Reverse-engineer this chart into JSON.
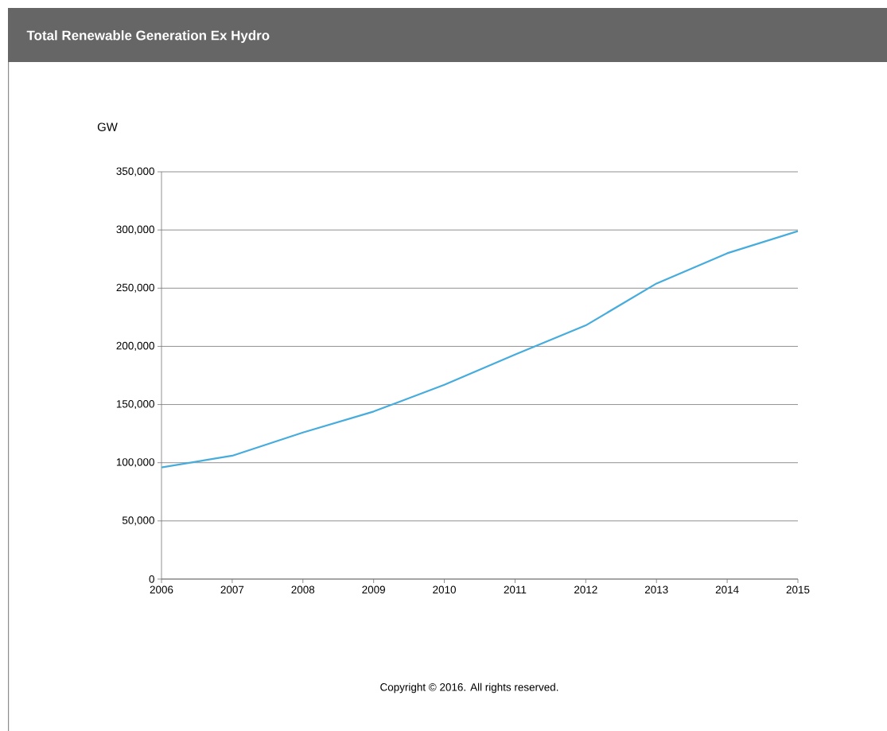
{
  "chart_data": {
    "type": "line",
    "title": "Total Renewable Generation Ex Hydro",
    "ylabel": "GW",
    "x": [
      2006,
      2007,
      2008,
      2009,
      2010,
      2011,
      2012,
      2013,
      2014,
      2015
    ],
    "series": [
      {
        "color": "#45acdd",
        "values": [
          96000,
          106000,
          126000,
          144000,
          167000,
          193000,
          218000,
          254000,
          280000,
          299000
        ]
      }
    ],
    "xlim": [
      2006,
      2015
    ],
    "xticks": [
      2006,
      2007,
      2008,
      2009,
      2010,
      2011,
      2012,
      2013,
      2014,
      2015
    ],
    "ylim": [
      0,
      350000
    ],
    "yticks": [
      {
        "value": 0,
        "label": "0"
      },
      {
        "value": 50000,
        "label": "50,000"
      },
      {
        "value": 100000,
        "label": "100,000"
      },
      {
        "value": 150000,
        "label": "150,000"
      },
      {
        "value": 200000,
        "label": "200,000"
      },
      {
        "value": 250000,
        "label": "250,000"
      },
      {
        "value": 300000,
        "label": "300,000"
      },
      {
        "value": 350000,
        "label": "350,000"
      }
    ],
    "grid": "y",
    "marker": "none",
    "line_style": "solid",
    "annotations": [
      "Copyright © 2016. All rights reserved."
    ]
  }
}
